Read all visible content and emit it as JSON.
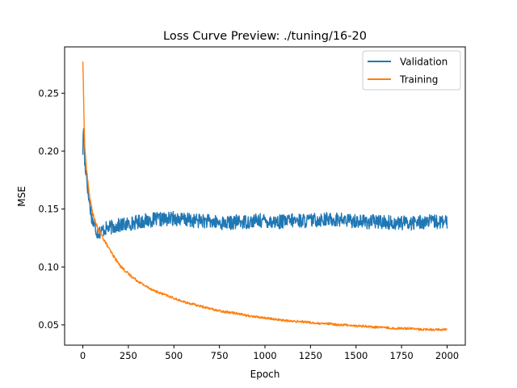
{
  "chart_data": {
    "type": "line",
    "title": "Loss Curve Preview: ./tuning/16-20",
    "xlabel": "Epoch",
    "ylabel": "MSE",
    "xlim": [
      -100,
      2100
    ],
    "ylim": [
      0.0325,
      0.29
    ],
    "xticks": [
      0,
      250,
      500,
      750,
      1000,
      1250,
      1500,
      1750,
      2000
    ],
    "yticks": [
      0.05,
      0.1,
      0.15,
      0.2,
      0.25
    ],
    "xtick_labels": [
      "0",
      "250",
      "500",
      "750",
      "1000",
      "1250",
      "1500",
      "1750",
      "2000"
    ],
    "ytick_labels": [
      "0.05",
      "0.10",
      "0.15",
      "0.20",
      "0.25"
    ],
    "grid": false,
    "legend_position": "top-right",
    "series": [
      {
        "name": "Validation",
        "color": "#1f77b4",
        "x": [
          0,
          5,
          10,
          20,
          30,
          40,
          50,
          60,
          70,
          80,
          90,
          100,
          125,
          150,
          200,
          250,
          300,
          350,
          400,
          450,
          500,
          550,
          600,
          650,
          700,
          750,
          800,
          850,
          900,
          950,
          1000,
          1050,
          1100,
          1150,
          1200,
          1250,
          1300,
          1350,
          1400,
          1450,
          1500,
          1550,
          1600,
          1650,
          1700,
          1750,
          1800,
          1850,
          1900,
          1950,
          2000
        ],
        "values": [
          0.2,
          0.225,
          0.19,
          0.18,
          0.162,
          0.152,
          0.142,
          0.137,
          0.133,
          0.13,
          0.13,
          0.131,
          0.133,
          0.134,
          0.136,
          0.137,
          0.139,
          0.14,
          0.141,
          0.141,
          0.142,
          0.141,
          0.14,
          0.14,
          0.139,
          0.138,
          0.138,
          0.139,
          0.139,
          0.14,
          0.14,
          0.139,
          0.139,
          0.14,
          0.14,
          0.14,
          0.141,
          0.141,
          0.141,
          0.14,
          0.14,
          0.139,
          0.139,
          0.139,
          0.138,
          0.138,
          0.138,
          0.139,
          0.139,
          0.139,
          0.138
        ]
      },
      {
        "name": "Training",
        "color": "#ff7f0e",
        "x": [
          0,
          5,
          10,
          20,
          30,
          40,
          50,
          60,
          70,
          80,
          90,
          100,
          125,
          150,
          200,
          250,
          300,
          350,
          400,
          450,
          500,
          550,
          600,
          650,
          700,
          750,
          800,
          850,
          900,
          950,
          1000,
          1050,
          1100,
          1150,
          1200,
          1250,
          1300,
          1350,
          1400,
          1450,
          1500,
          1550,
          1600,
          1650,
          1700,
          1750,
          1800,
          1850,
          1900,
          1950,
          2000
        ],
        "values": [
          0.278,
          0.24,
          0.205,
          0.185,
          0.17,
          0.158,
          0.15,
          0.143,
          0.138,
          0.134,
          0.131,
          0.128,
          0.121,
          0.114,
          0.102,
          0.094,
          0.088,
          0.083,
          0.079,
          0.076,
          0.073,
          0.07,
          0.068,
          0.066,
          0.064,
          0.062,
          0.061,
          0.06,
          0.058,
          0.057,
          0.056,
          0.055,
          0.054,
          0.053,
          0.053,
          0.052,
          0.051,
          0.051,
          0.05,
          0.05,
          0.049,
          0.049,
          0.048,
          0.048,
          0.047,
          0.047,
          0.047,
          0.046,
          0.046,
          0.046,
          0.046
        ]
      }
    ]
  }
}
